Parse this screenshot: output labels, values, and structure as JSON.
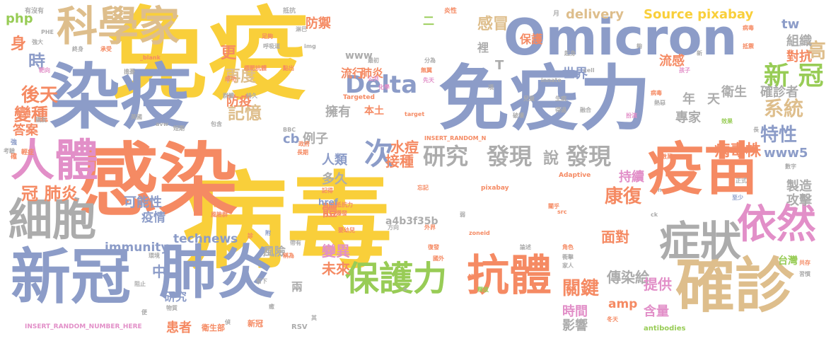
{
  "colors": {
    "yellow": "#F9CF3A",
    "blue": "#8C9CC8",
    "orange": "#F58A63",
    "tan": "#DEBE8C",
    "pink": "#E28FC8",
    "green": "#98CC56",
    "gray": "#ACACAC"
  },
  "words": [
    {
      "text": "免疫",
      "color": "yellow"
    },
    {
      "text": "病毒",
      "color": "yellow"
    },
    {
      "text": "感染",
      "color": "orange"
    },
    {
      "text": "染疫",
      "color": "blue"
    },
    {
      "text": "免疫力",
      "color": "blue"
    },
    {
      "text": "Omicron",
      "color": "blue"
    },
    {
      "text": "科學家",
      "color": "tan"
    },
    {
      "text": "疫苗",
      "color": "orange"
    },
    {
      "text": "人體",
      "color": "pink"
    },
    {
      "text": "細胞",
      "color": "gray"
    },
    {
      "text": "新冠",
      "color": "blue"
    },
    {
      "text": "肺炎",
      "color": "blue"
    },
    {
      "text": "確診",
      "color": "tan"
    },
    {
      "text": "症狀",
      "color": "gray"
    },
    {
      "text": "依然",
      "color": "pink"
    },
    {
      "text": "抗體",
      "color": "orange"
    },
    {
      "text": "保護力",
      "color": "green"
    },
    {
      "text": "Delta",
      "color": "blue"
    },
    {
      "text": "研究",
      "color": "gray"
    },
    {
      "text": "發現",
      "color": "gray"
    },
    {
      "text": "發現",
      "color": "gray"
    },
    {
      "text": "次",
      "color": "blue"
    },
    {
      "text": "感冒",
      "color": "tan"
    },
    {
      "text": "再度",
      "color": "tan"
    },
    {
      "text": "記憶",
      "color": "tan"
    },
    {
      "text": "系統",
      "color": "tan"
    },
    {
      "text": "特性",
      "color": "blue"
    },
    {
      "text": "新 冠",
      "color": "green"
    },
    {
      "text": "高",
      "color": "tan"
    },
    {
      "text": "delivery",
      "color": "tan"
    },
    {
      "text": "Source pixabay",
      "color": "yellow"
    },
    {
      "text": "確診者",
      "color": "gray"
    },
    {
      "text": "衛生",
      "color": "gray"
    },
    {
      "text": "康復",
      "color": "orange"
    },
    {
      "text": "關鍵",
      "color": "orange"
    },
    {
      "text": "傳染給",
      "color": "gray"
    },
    {
      "text": "病毒株",
      "color": "orange"
    },
    {
      "text": "www5",
      "color": "blue"
    },
    {
      "text": "immunity",
      "color": "blue"
    },
    {
      "text": "technews",
      "color": "blue"
    },
    {
      "text": "變異",
      "color": "pink"
    },
    {
      "text": "未來",
      "color": "orange"
    },
    {
      "text": "面對",
      "color": "orange"
    },
    {
      "text": "提供",
      "color": "pink"
    },
    {
      "text": "時間",
      "color": "pink"
    },
    {
      "text": "影響",
      "color": "gray"
    },
    {
      "text": "含量",
      "color": "pink"
    },
    {
      "text": "amp",
      "color": "orange"
    },
    {
      "text": "tw",
      "color": "blue"
    },
    {
      "text": "身",
      "color": "orange"
    },
    {
      "text": "時",
      "color": "blue"
    },
    {
      "text": "更",
      "color": "orange"
    },
    {
      "text": "後天",
      "color": "orange"
    },
    {
      "text": "變種",
      "color": "orange"
    },
    {
      "text": "答案",
      "color": "orange"
    },
    {
      "text": "冠 肺炎",
      "color": "orange"
    },
    {
      "text": "可能性",
      "color": "blue"
    },
    {
      "text": "疫情",
      "color": "blue"
    },
    {
      "text": "中",
      "color": "blue"
    },
    {
      "text": "php",
      "color": "green"
    },
    {
      "text": "防禦",
      "color": "orange"
    },
    {
      "text": "防疫",
      "color": "orange"
    },
    {
      "text": "例子",
      "color": "gray"
    },
    {
      "text": "人類",
      "color": "blue"
    },
    {
      "text": "水痘",
      "color": "orange"
    },
    {
      "text": "接種",
      "color": "orange"
    },
    {
      "text": "多久",
      "color": "gray"
    },
    {
      "text": "cb",
      "color": "blue"
    },
    {
      "text": "擁有",
      "color": "gray"
    },
    {
      "text": "體",
      "color": "orange"
    },
    {
      "text": "說",
      "color": "gray"
    },
    {
      "text": "世界",
      "color": "blue"
    },
    {
      "text": "專家",
      "color": "gray"
    },
    {
      "text": "年",
      "color": "gray"
    },
    {
      "text": "天",
      "color": "gray"
    },
    {
      "text": "組織",
      "color": "gray"
    },
    {
      "text": "對抗",
      "color": "orange"
    },
    {
      "text": "流感",
      "color": "orange"
    },
    {
      "text": "持續",
      "color": "pink"
    },
    {
      "text": "製造",
      "color": "gray"
    },
    {
      "text": "攻擊",
      "color": "gray"
    },
    {
      "text": "台灣",
      "color": "green"
    },
    {
      "text": "保護",
      "color": "orange"
    },
    {
      "text": "風險",
      "color": "gray"
    },
    {
      "text": "兩",
      "color": "gray"
    },
    {
      "text": "研究",
      "color": "blue"
    },
    {
      "text": "患者",
      "color": "orange"
    },
    {
      "text": "肺炎",
      "color": "orange"
    },
    {
      "text": "流行",
      "color": "orange"
    },
    {
      "text": "本土",
      "color": "orange"
    },
    {
      "text": "裡",
      "color": "gray"
    },
    {
      "text": "www",
      "color": "gray"
    },
    {
      "text": "二",
      "color": "green"
    },
    {
      "text": "T",
      "color": "gray"
    },
    {
      "text": "a4b3f35b",
      "color": "gray"
    },
    {
      "text": "href",
      "color": "blue"
    },
    {
      "text": "INSERT_RANDOM_NUMBER_HERE",
      "color": "pink"
    },
    {
      "text": "antibodies",
      "color": "green"
    },
    {
      "text": "RSV",
      "color": "gray"
    },
    {
      "text": "衛生部",
      "color": "orange"
    },
    {
      "text": "新冠",
      "color": "orange"
    },
    {
      "text": "有沒有",
      "color": "gray"
    },
    {
      "text": "抵抗",
      "color": "gray"
    },
    {
      "text": "炎性",
      "color": "orange"
    },
    {
      "text": "月",
      "color": "gray"
    },
    {
      "text": "PHE",
      "color": "gray"
    },
    {
      "text": "強大",
      "color": "gray"
    },
    {
      "text": "終身",
      "color": "gray"
    },
    {
      "text": "承受",
      "color": "orange"
    },
    {
      "text": "_blank",
      "color": "orange"
    },
    {
      "text": "img",
      "color": "gray"
    },
    {
      "text": "最初",
      "color": "gray"
    },
    {
      "text": "分為",
      "color": "gray"
    },
    {
      "text": "無翼",
      "color": "orange"
    },
    {
      "text": "先天",
      "color": "pink"
    },
    {
      "text": "化學",
      "color": "pink"
    },
    {
      "text": "公共",
      "color": "pink"
    },
    {
      "text": "Targeted",
      "color": "orange"
    },
    {
      "text": "BBC",
      "color": "gray"
    },
    {
      "text": "INSERT_RANDOM_N",
      "color": "orange"
    },
    {
      "text": "target",
      "color": "orange"
    },
    {
      "text": "Adaptive",
      "color": "orange"
    },
    {
      "text": "pixabay",
      "color": "orange"
    },
    {
      "text": "innate",
      "color": "gray"
    },
    {
      "text": "zoneid",
      "color": "orange"
    },
    {
      "text": "src",
      "color": "orange"
    },
    {
      "text": "ck",
      "color": "gray"
    },
    {
      "text": "數字",
      "color": "gray"
    },
    {
      "text": "數萬",
      "color": "orange"
    },
    {
      "text": "至少",
      "color": "blue"
    },
    {
      "text": "論述",
      "color": "gray"
    },
    {
      "text": "角色",
      "color": "orange"
    },
    {
      "text": "衝擊",
      "color": "gray"
    },
    {
      "text": "家人",
      "color": "gray"
    },
    {
      "text": "共存",
      "color": "orange"
    },
    {
      "text": "習慣",
      "color": "gray"
    },
    {
      "text": "方向",
      "color": "gray"
    },
    {
      "text": "外界",
      "color": "orange"
    },
    {
      "text": "嬰幼兒",
      "color": "orange"
    },
    {
      "text": "記得",
      "color": "orange"
    },
    {
      "text": "抵抗力",
      "color": "orange"
    },
    {
      "text": "爆發",
      "color": "orange"
    },
    {
      "text": "國外",
      "color": "orange"
    },
    {
      "text": "解釋",
      "color": "orange"
    },
    {
      "text": "釋放",
      "color": "green"
    },
    {
      "text": "復發",
      "color": "orange"
    },
    {
      "text": "擔憂",
      "color": "gray"
    },
    {
      "text": "靶向",
      "color": "pink"
    },
    {
      "text": "呼吸道",
      "color": "gray"
    },
    {
      "text": "標靶抗體",
      "color": "orange"
    },
    {
      "text": "點出",
      "color": "orange"
    },
    {
      "text": "足夠",
      "color": "orange"
    },
    {
      "text": "成功",
      "color": "orange"
    },
    {
      "text": "淋巴",
      "color": "gray"
    },
    {
      "text": "群體",
      "color": "gray"
    },
    {
      "text": "持久",
      "color": "gray"
    },
    {
      "text": "英國",
      "color": "gray"
    },
    {
      "text": "親友",
      "color": "gray"
    },
    {
      "text": "短期",
      "color": "gray"
    },
    {
      "text": "avw",
      "color": "gray"
    },
    {
      "text": "包含",
      "color": "gray"
    },
    {
      "text": "政府",
      "color": "orange"
    },
    {
      "text": "長期",
      "color": "orange"
    },
    {
      "text": "考驗",
      "color": "gray"
    },
    {
      "text": "輕症",
      "color": "orange"
    },
    {
      "text": "確",
      "color": "orange"
    },
    {
      "text": "強",
      "color": "blue"
    },
    {
      "text": "風險群",
      "color": "orange"
    },
    {
      "text": "環境",
      "color": "gray"
    },
    {
      "text": "阻止",
      "color": "gray"
    },
    {
      "text": "留下",
      "color": "gray"
    },
    {
      "text": "稱為",
      "color": "orange"
    },
    {
      "text": "帶有",
      "color": "gray"
    },
    {
      "text": "附",
      "color": "blue"
    },
    {
      "text": "診",
      "color": "orange"
    },
    {
      "text": "便",
      "color": "gray"
    },
    {
      "text": "物質",
      "color": "gray"
    },
    {
      "text": "癒",
      "color": "gray"
    },
    {
      "text": "其",
      "color": "gray"
    },
    {
      "text": "冬天",
      "color": "orange"
    },
    {
      "text": "兒童",
      "color": "gray"
    },
    {
      "text": "破壞",
      "color": "gray"
    },
    {
      "text": "生病",
      "color": "gray"
    },
    {
      "text": "得過",
      "color": "gray"
    },
    {
      "text": "融合",
      "color": "gray"
    },
    {
      "text": "扮演",
      "color": "pink"
    },
    {
      "text": "病毒",
      "color": "orange"
    },
    {
      "text": "熱惡",
      "color": "gray"
    },
    {
      "text": "效果",
      "color": "green"
    },
    {
      "text": "長",
      "color": "gray"
    },
    {
      "text": "孩子",
      "color": "pink"
    },
    {
      "text": "抵禦",
      "color": "orange"
    },
    {
      "text": "新",
      "color": "gray"
    },
    {
      "text": "病毒",
      "color": "orange"
    },
    {
      "text": "夠",
      "color": "gray"
    },
    {
      "text": "起身",
      "color": "gray"
    },
    {
      "text": "cell",
      "color": "gray"
    },
    {
      "text": "項",
      "color": "gray"
    },
    {
      "text": "a",
      "color": "gray"
    },
    {
      "text": "弱",
      "color": "gray"
    },
    {
      "text": "n",
      "color": "gray"
    },
    {
      "text": "忘記",
      "color": "orange"
    },
    {
      "text": "正式",
      "color": "gray"
    },
    {
      "text": "關乎",
      "color": "orange"
    },
    {
      "text": "偵",
      "color": "gray"
    }
  ]
}
